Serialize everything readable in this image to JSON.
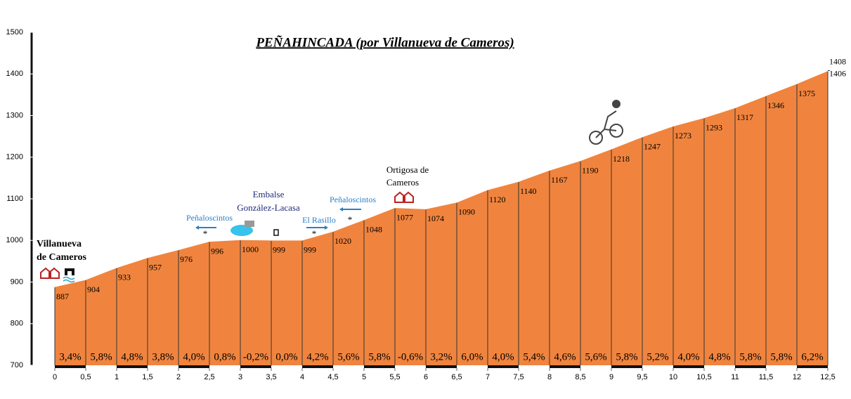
{
  "chart_data": {
    "type": "area",
    "title": "PEÑAHINCADA (por Villanueva de Cameros)",
    "x": [
      0,
      0.5,
      1,
      1.5,
      2,
      2.5,
      3,
      3.5,
      4,
      4.5,
      5,
      5.5,
      6,
      6.5,
      7,
      7.5,
      8,
      8.5,
      9,
      9.5,
      10,
      10.5,
      11,
      11.5,
      12,
      12.5
    ],
    "values": [
      887,
      904,
      933,
      957,
      976,
      996,
      1000,
      999,
      999,
      1020,
      1048,
      1077,
      1074,
      1090,
      1120,
      1140,
      1167,
      1190,
      1218,
      1247,
      1273,
      1293,
      1317,
      1346,
      1375,
      1406
    ],
    "color": "#f0843e",
    "summit": 1408,
    "gradients": [
      3.4,
      5.8,
      4.8,
      3.8,
      4.0,
      0.8,
      -0.2,
      0.0,
      4.2,
      5.6,
      5.8,
      -0.6,
      3.2,
      6.0,
      4.0,
      5.4,
      4.6,
      5.6,
      5.8,
      5.2,
      4.0,
      4.8,
      5.8,
      5.8,
      6.2
    ],
    "gradient_labels": [
      "3,4%",
      "5,8%",
      "4,8%",
      "3,8%",
      "4,0%",
      "0,8%",
      "-0,2%",
      "0,0%",
      "4,2%",
      "5,6%",
      "5,8%",
      "-0,6%",
      "3,2%",
      "6,0%",
      "4,0%",
      "5,4%",
      "4,6%",
      "5,6%",
      "5,8%",
      "5,2%",
      "4,0%",
      "4,8%",
      "5,8%",
      "5,8%",
      "6,2%"
    ],
    "xlim": [
      0,
      12.5
    ],
    "xticks": [
      0,
      {
        "value": 0.5,
        "label": "0,5"
      },
      1,
      {
        "value": 1.5,
        "label": "1,5"
      },
      2,
      {
        "value": 2.5,
        "label": "2,5"
      },
      3,
      {
        "value": 3.5,
        "label": "3,5"
      },
      4,
      {
        "value": 4.5,
        "label": "4,5"
      },
      5,
      {
        "value": 5.5,
        "label": "5,5"
      },
      6,
      {
        "value": 6.5,
        "label": "6,5"
      },
      7,
      {
        "value": 7.5,
        "label": "7,5"
      },
      8,
      {
        "value": 8.5,
        "label": "8,5"
      },
      9,
      {
        "value": 9.5,
        "label": "9,5"
      },
      10,
      {
        "value": 10.5,
        "label": "10,5"
      },
      11,
      {
        "value": 11.5,
        "label": "11,5"
      },
      12,
      {
        "value": 12.5,
        "label": "12,5"
      }
    ],
    "ylim": [
      700,
      1500
    ],
    "yticks": [
      700,
      800,
      900,
      1000,
      1100,
      1200,
      1300,
      1400,
      1500
    ],
    "annotations": [
      [
        "Villanueva",
        "de Cameros"
      ],
      [
        "Peñaloscintos"
      ],
      [
        "Embalse",
        "González-Lacasa"
      ],
      [
        "El Rasillo"
      ],
      [
        "Peñaloscintos"
      ],
      [
        "Ortigosa de",
        "Cameros"
      ],
      [
        "*"
      ],
      [
        "*"
      ],
      [
        "*"
      ]
    ]
  }
}
